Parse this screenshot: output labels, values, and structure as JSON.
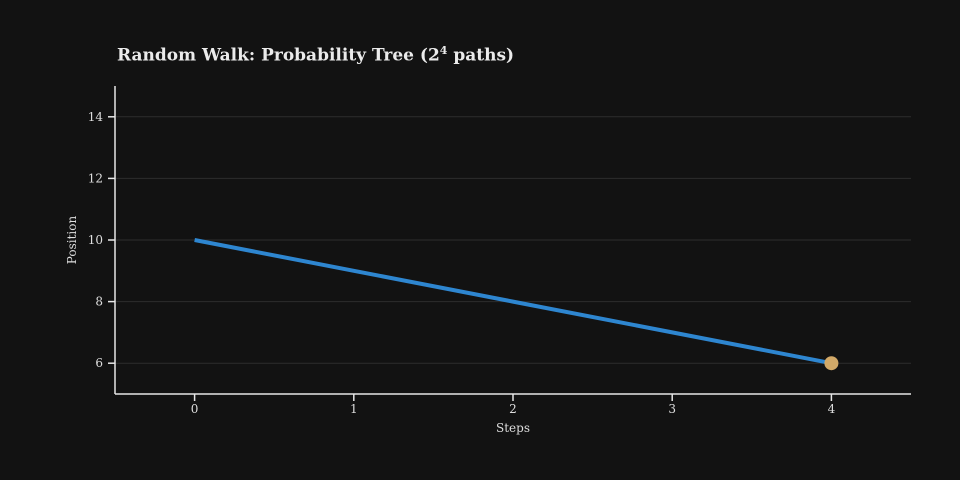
{
  "figure": {
    "background": "#121212"
  },
  "chart_data": {
    "type": "line",
    "title": "Random Walk: Probability Tree (2^4 paths)",
    "title_prefix": "Random Walk: Probability Tree (2",
    "title_sup": "4",
    "title_suffix": " paths)",
    "xlabel": "Steps",
    "ylabel": "Position",
    "x": [
      0,
      1,
      2,
      3,
      4
    ],
    "y": [
      10,
      9,
      8,
      7,
      6
    ],
    "xticks": [
      0,
      1,
      2,
      3,
      4
    ],
    "yticks": [
      6,
      8,
      10,
      12,
      14
    ],
    "xlim": [
      -0.5,
      4.5
    ],
    "ylim": [
      5,
      15
    ],
    "grid": "horizontal",
    "legend_position": "none",
    "line_color": "#2e86d0",
    "line_width": 4,
    "endpoint_marker": {
      "x": 4,
      "y": 6,
      "color": "#d2a968",
      "radius": 7
    },
    "colors": {
      "background": "#121212",
      "title": "#ebebeb",
      "text": "#dedede",
      "spine": "#e6e6e6",
      "grid": "#2d2d2d"
    }
  }
}
